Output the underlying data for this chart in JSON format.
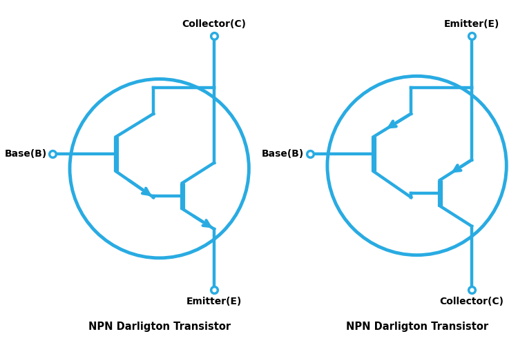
{
  "color": "#29ABE2",
  "lw": 3.2,
  "bg": "#ffffff",
  "title_color": "#000000",
  "label_color": "#000000",
  "npn_title": "NPN Darligton Transistor",
  "pnp_title": "NPN Darligton Transistor",
  "npn_labels": {
    "collector": "Collector(C)",
    "base": "Base(B)",
    "emitter": "Emitter(E)"
  },
  "pnp_labels": {
    "emitter": "Emitter(E)",
    "base": "Base(B)",
    "collector": "Collector(C)"
  }
}
